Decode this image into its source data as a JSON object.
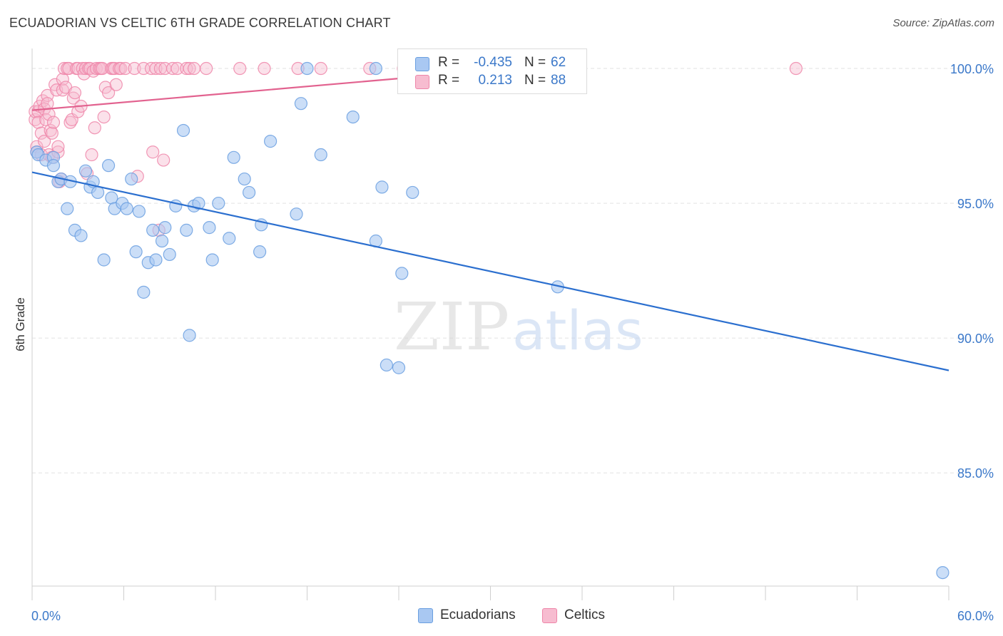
{
  "title": "ECUADORIAN VS CELTIC 6TH GRADE CORRELATION CHART",
  "source": "Source: ZipAtlas.com",
  "watermark": {
    "zip": "ZIP",
    "atlas": "atlas"
  },
  "colors": {
    "ecuadorians_fill": "#a9c8f2",
    "ecuadorians_stroke": "#6a9fe0",
    "ecuadorians_line": "#2b6fcf",
    "celtics_fill": "#f7bcd0",
    "celtics_stroke": "#ee86a9",
    "celtics_line": "#e2628f",
    "tick_text": "#3b78c9",
    "grid": "#e2e2e2"
  },
  "legend": {
    "rows": [
      {
        "r_label": "R =",
        "r_value": "-0.435",
        "n_label": "N =",
        "n_value": "62"
      },
      {
        "r_label": "R =",
        "r_value": "0.213",
        "n_label": "N =",
        "n_value": "88"
      }
    ]
  },
  "bottom_legend": [
    "Ecuadorians",
    "Celtics"
  ],
  "chart_data": {
    "type": "scatter",
    "title": "ECUADORIAN VS CELTIC 6TH GRADE CORRELATION CHART",
    "xlabel": "",
    "ylabel": "6th Grade",
    "xlim": [
      0,
      60
    ],
    "ylim": [
      80.8,
      100.9
    ],
    "x_tick_labels": [
      "0.0%",
      "60.0%"
    ],
    "y_ticks": [
      85,
      90,
      95,
      100
    ],
    "y_tick_labels": [
      "85.0%",
      "90.0%",
      "95.0%",
      "100.0%"
    ],
    "grid": true,
    "legend_placement": "top-center",
    "series": [
      {
        "name": "Ecuadorians",
        "r": -0.435,
        "n": 62,
        "trend": {
          "x": [
            0,
            60
          ],
          "y": [
            96.15,
            88.8
          ]
        },
        "points": [
          [
            0.3,
            96.9
          ],
          [
            0.4,
            96.8
          ],
          [
            0.9,
            96.6
          ],
          [
            1.4,
            96.7
          ],
          [
            1.4,
            96.4
          ],
          [
            1.7,
            95.8
          ],
          [
            1.9,
            95.9
          ],
          [
            2.3,
            94.8
          ],
          [
            2.5,
            95.8
          ],
          [
            2.8,
            94.0
          ],
          [
            3.2,
            93.8
          ],
          [
            3.5,
            96.2
          ],
          [
            3.8,
            95.6
          ],
          [
            4.0,
            95.8
          ],
          [
            4.3,
            95.4
          ],
          [
            4.7,
            92.9
          ],
          [
            5.0,
            96.4
          ],
          [
            5.2,
            95.2
          ],
          [
            5.4,
            94.8
          ],
          [
            5.9,
            95.0
          ],
          [
            6.2,
            94.8
          ],
          [
            6.5,
            95.9
          ],
          [
            6.8,
            93.2
          ],
          [
            7.0,
            94.7
          ],
          [
            7.3,
            91.7
          ],
          [
            7.6,
            92.8
          ],
          [
            7.9,
            94.0
          ],
          [
            8.1,
            92.9
          ],
          [
            8.5,
            93.6
          ],
          [
            8.7,
            94.1
          ],
          [
            9.0,
            93.1
          ],
          [
            9.4,
            94.9
          ],
          [
            9.9,
            97.7
          ],
          [
            10.1,
            94.0
          ],
          [
            10.3,
            90.1
          ],
          [
            10.6,
            94.9
          ],
          [
            10.9,
            95.0
          ],
          [
            11.6,
            94.1
          ],
          [
            11.8,
            92.9
          ],
          [
            12.2,
            95.0
          ],
          [
            12.9,
            93.7
          ],
          [
            13.2,
            96.7
          ],
          [
            13.9,
            95.9
          ],
          [
            14.2,
            95.4
          ],
          [
            14.9,
            93.2
          ],
          [
            15.0,
            94.2
          ],
          [
            15.6,
            97.3
          ],
          [
            17.3,
            94.6
          ],
          [
            17.6,
            98.7
          ],
          [
            18.0,
            100.0
          ],
          [
            18.9,
            96.8
          ],
          [
            21.0,
            98.2
          ],
          [
            22.5,
            93.6
          ],
          [
            22.5,
            100.0
          ],
          [
            22.9,
            95.6
          ],
          [
            23.2,
            89.0
          ],
          [
            24.0,
            88.9
          ],
          [
            24.2,
            92.4
          ],
          [
            24.9,
            95.4
          ],
          [
            25.4,
            100.0
          ],
          [
            34.4,
            91.9
          ],
          [
            59.6,
            81.3
          ]
        ]
      },
      {
        "name": "Celtics",
        "r": 0.213,
        "n": 88,
        "trend": {
          "x": [
            0,
            27.5
          ],
          "y": [
            98.45,
            99.8
          ]
        },
        "points": [
          [
            0.2,
            98.1
          ],
          [
            0.2,
            98.4
          ],
          [
            0.3,
            97.1
          ],
          [
            0.3,
            96.9
          ],
          [
            0.4,
            98.4
          ],
          [
            0.4,
            98.0
          ],
          [
            0.5,
            98.6
          ],
          [
            0.6,
            97.6
          ],
          [
            0.6,
            96.8
          ],
          [
            0.7,
            98.8
          ],
          [
            0.8,
            97.3
          ],
          [
            0.8,
            98.5
          ],
          [
            0.9,
            98.1
          ],
          [
            1.0,
            99.0
          ],
          [
            1.0,
            98.7
          ],
          [
            1.1,
            96.8
          ],
          [
            1.1,
            98.3
          ],
          [
            1.2,
            97.7
          ],
          [
            1.3,
            97.6
          ],
          [
            1.3,
            96.7
          ],
          [
            1.4,
            98.0
          ],
          [
            1.5,
            99.4
          ],
          [
            1.6,
            99.2
          ],
          [
            1.7,
            96.9
          ],
          [
            1.7,
            97.1
          ],
          [
            1.8,
            95.8
          ],
          [
            1.9,
            95.9
          ],
          [
            2.0,
            99.6
          ],
          [
            2.0,
            99.2
          ],
          [
            2.1,
            100.0
          ],
          [
            2.2,
            99.3
          ],
          [
            2.3,
            100.0
          ],
          [
            2.4,
            100.0
          ],
          [
            2.5,
            98.0
          ],
          [
            2.6,
            98.1
          ],
          [
            2.7,
            98.9
          ],
          [
            2.8,
            99.1
          ],
          [
            2.9,
            100.0
          ],
          [
            3.0,
            100.0
          ],
          [
            3.0,
            98.4
          ],
          [
            3.2,
            98.6
          ],
          [
            3.3,
            100.0
          ],
          [
            3.4,
            99.8
          ],
          [
            3.5,
            100.0
          ],
          [
            3.6,
            96.1
          ],
          [
            3.7,
            100.0
          ],
          [
            3.8,
            100.0
          ],
          [
            3.9,
            96.8
          ],
          [
            4.0,
            99.9
          ],
          [
            4.1,
            97.8
          ],
          [
            4.2,
            100.0
          ],
          [
            4.4,
            100.0
          ],
          [
            4.5,
            100.0
          ],
          [
            4.6,
            100.0
          ],
          [
            4.7,
            98.2
          ],
          [
            4.8,
            99.3
          ],
          [
            5.0,
            99.1
          ],
          [
            5.2,
            100.0
          ],
          [
            5.3,
            100.0
          ],
          [
            5.4,
            100.0
          ],
          [
            5.5,
            99.4
          ],
          [
            5.7,
            100.0
          ],
          [
            5.8,
            100.0
          ],
          [
            6.1,
            100.0
          ],
          [
            6.7,
            100.0
          ],
          [
            6.9,
            96.0
          ],
          [
            7.3,
            100.0
          ],
          [
            7.8,
            100.0
          ],
          [
            7.9,
            96.9
          ],
          [
            8.1,
            100.0
          ],
          [
            8.3,
            94.0
          ],
          [
            8.4,
            100.0
          ],
          [
            8.6,
            96.6
          ],
          [
            8.7,
            100.0
          ],
          [
            9.2,
            100.0
          ],
          [
            9.5,
            100.0
          ],
          [
            10.1,
            100.0
          ],
          [
            10.3,
            100.0
          ],
          [
            10.6,
            100.0
          ],
          [
            11.4,
            100.0
          ],
          [
            13.6,
            100.0
          ],
          [
            15.2,
            100.0
          ],
          [
            17.4,
            100.0
          ],
          [
            18.9,
            100.0
          ],
          [
            22.1,
            100.0
          ],
          [
            24.3,
            100.0
          ],
          [
            26.0,
            100.0
          ],
          [
            50.0,
            100.0
          ]
        ]
      }
    ]
  }
}
